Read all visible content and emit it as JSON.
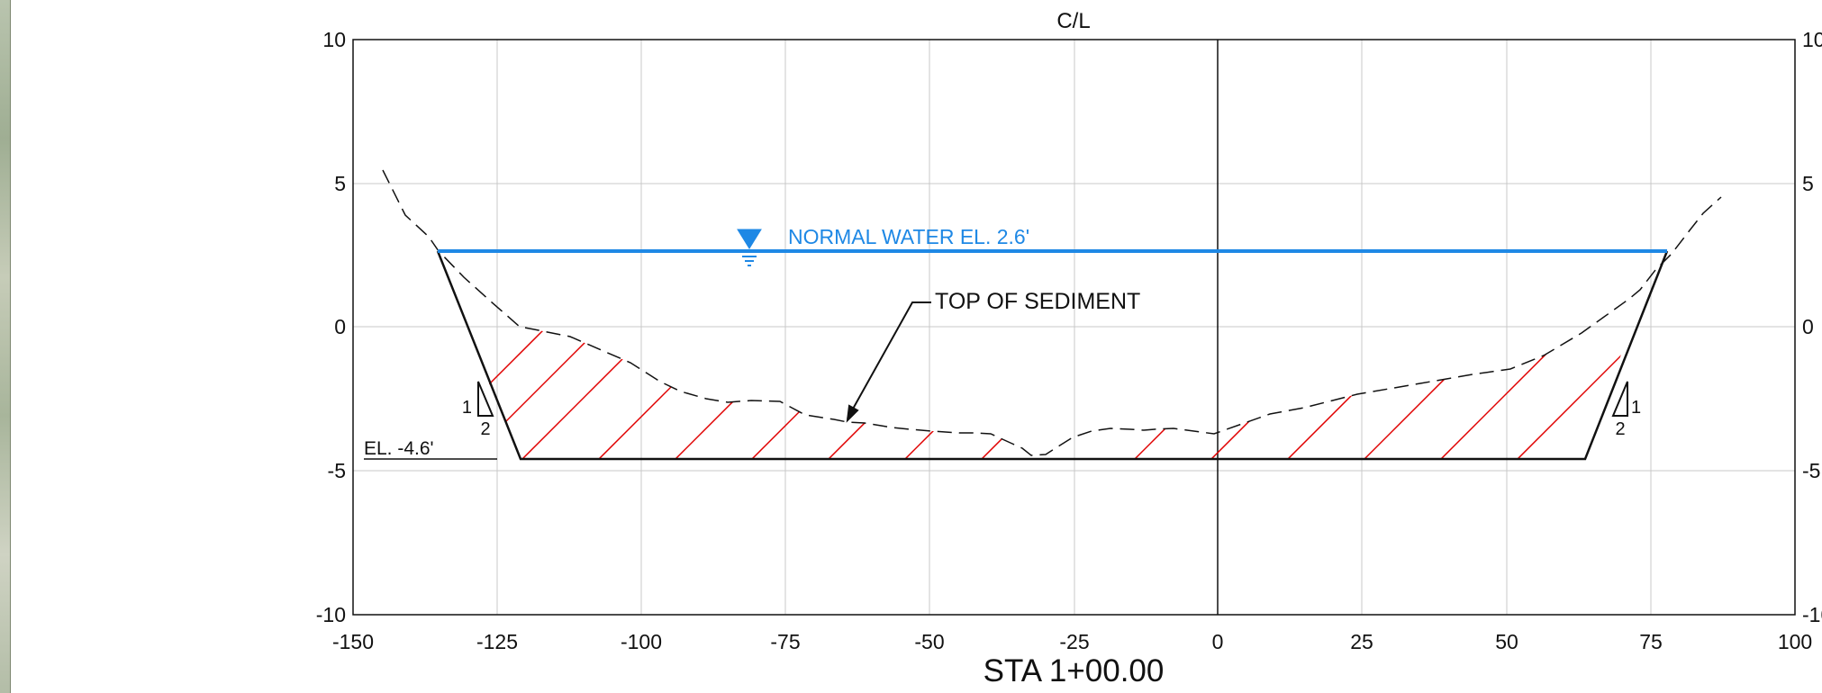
{
  "labels": {
    "centerline": "C/L",
    "water": "NORMAL WATER EL. 2.6'",
    "sediment": "TOP OF SEDIMENT",
    "elevation": "EL. -4.6'",
    "station": "STA 1+00.00",
    "slope_rise": "1",
    "slope_run": "2"
  },
  "x_ticks": [
    "-150",
    "-125",
    "-100",
    "-75",
    "-50",
    "-25",
    "0",
    "25",
    "50",
    "75",
    "100"
  ],
  "y_ticks_left": [
    "10",
    "5",
    "0",
    "-5",
    "-10"
  ],
  "y_ticks_right": [
    "10",
    "5",
    "0",
    "-5",
    "-10"
  ],
  "colors": {
    "water": "#1e88e5",
    "hatch": "#e00000",
    "grid": "#c8c8c8",
    "line": "#111111"
  }
}
